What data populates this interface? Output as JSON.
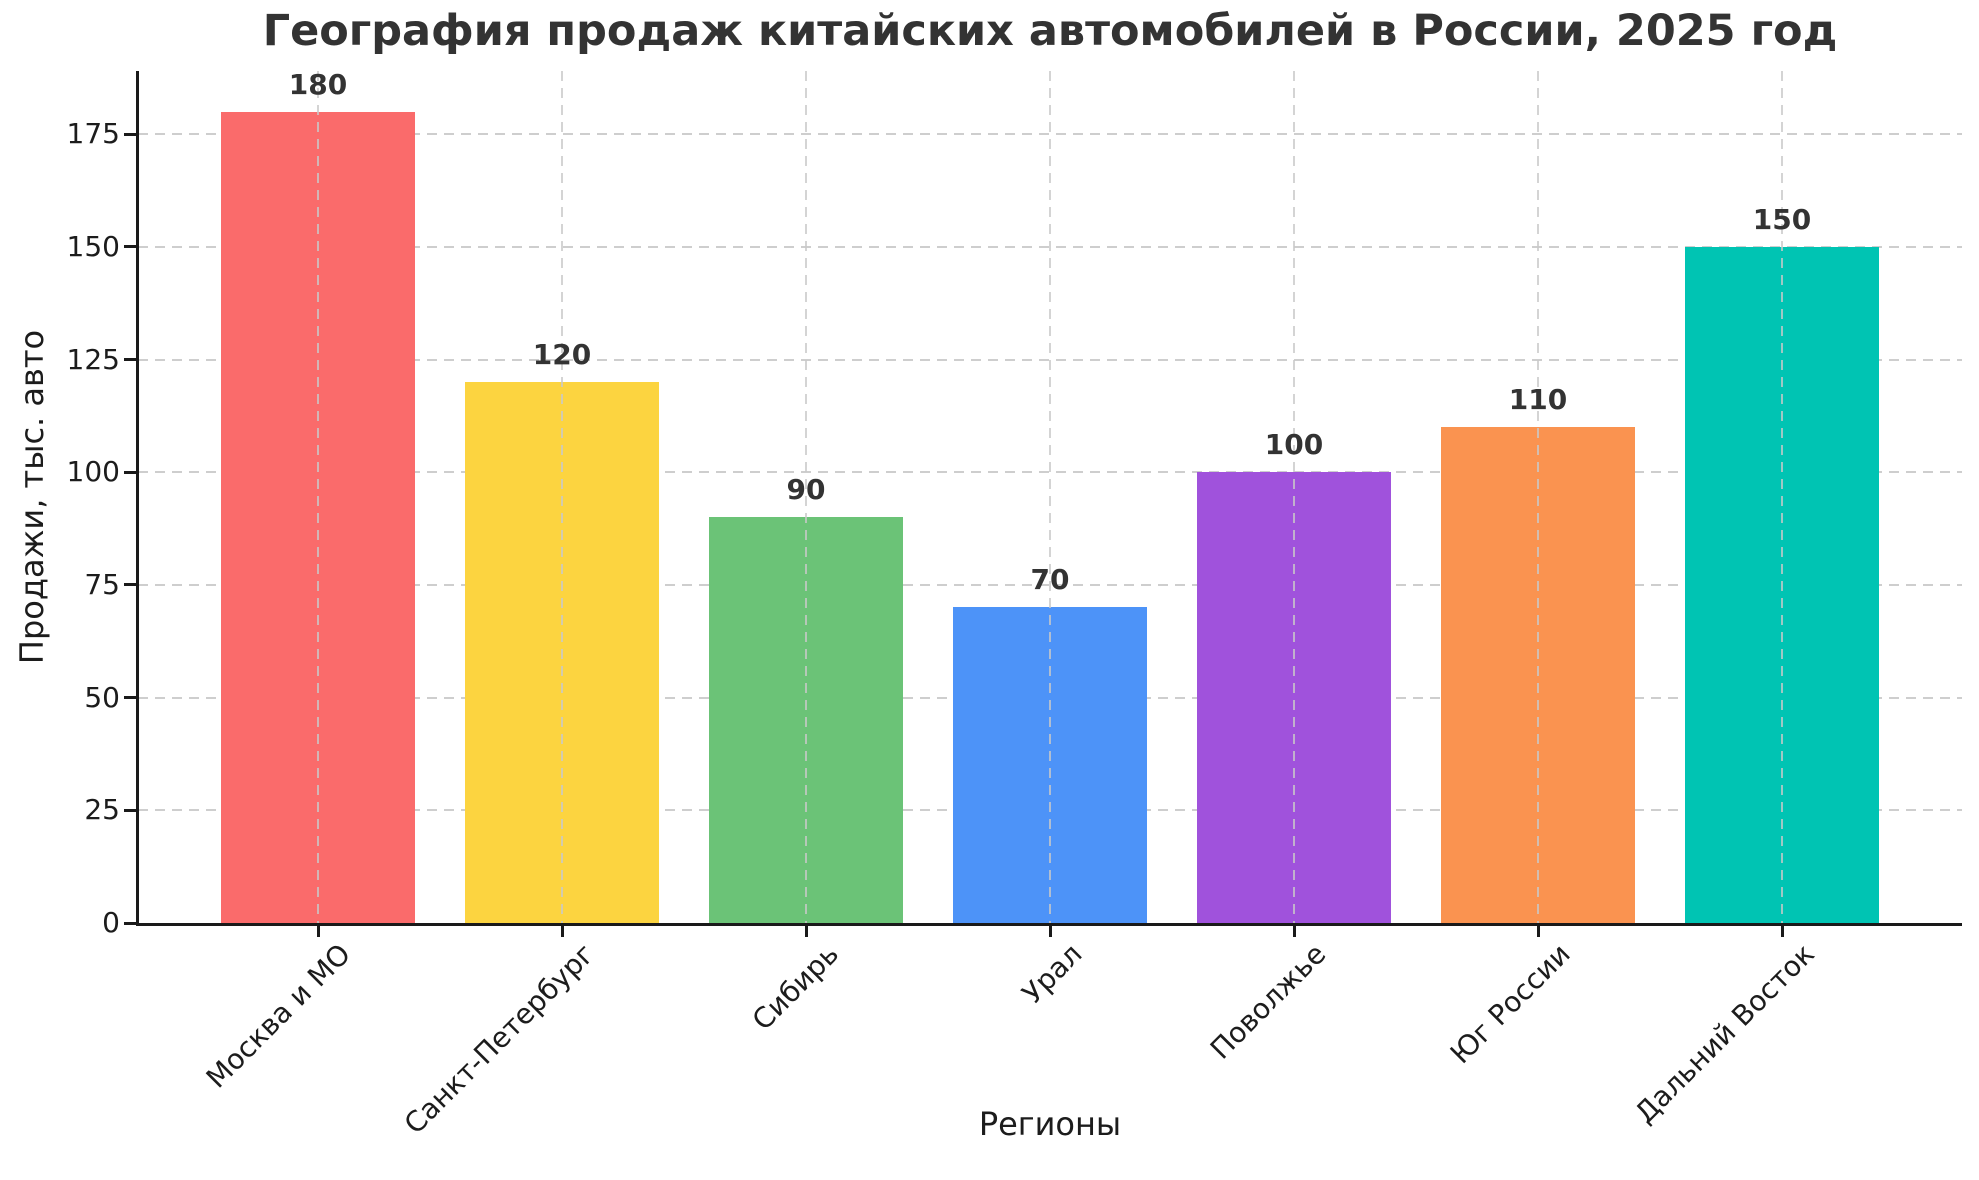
{
  "chart_data": {
    "type": "bar",
    "title": "География продаж китайских автомобилей в России, 2025 год",
    "xlabel": "Регионы",
    "ylabel": "Продажи, тыс. авто",
    "categories": [
      "Москва и МО",
      "Санкт-Петербург",
      "Сибирь",
      "Урал",
      "Поволжье",
      "Юг России",
      "Дальний Восток"
    ],
    "values": [
      180,
      120,
      90,
      70,
      100,
      110,
      150
    ],
    "value_labels": [
      "180",
      "120",
      "90",
      "70",
      "100",
      "110",
      "150"
    ],
    "bar_colors": [
      "#FA6B6B",
      "#FCD440",
      "#6BC377",
      "#4D93F8",
      "#A052DC",
      "#FA9350",
      "#00C4B3"
    ],
    "yticks": [
      0,
      25,
      50,
      75,
      100,
      125,
      150,
      175
    ],
    "ylim": [
      0,
      189
    ],
    "grid": "dashed-both-axes",
    "legend_position": "none",
    "colors": {
      "grid": "#c9c9c9",
      "axis": "#1a1a1a",
      "tick_text": "#1c1c1c",
      "title_text": "#333333",
      "value_label_text": "#333333",
      "background": "#ffffff"
    }
  }
}
